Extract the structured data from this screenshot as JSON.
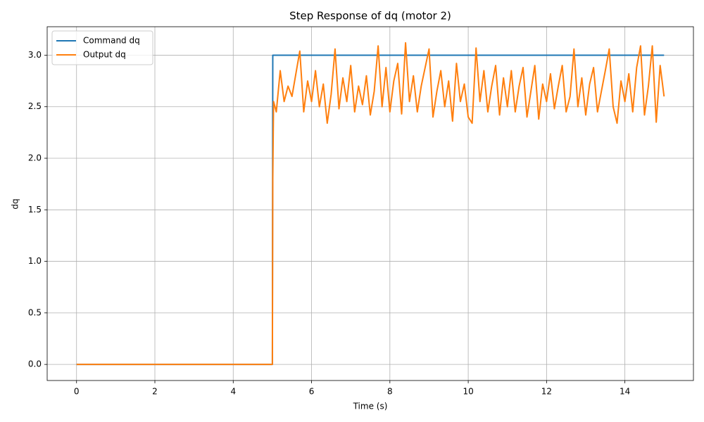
{
  "chart_data": {
    "type": "line",
    "title": "Step Response of dq (motor 2)",
    "x_label": "Time (s)",
    "y_label": "dq",
    "xlim": [
      -0.75,
      15.75
    ],
    "ylim": [
      -0.156,
      3.276
    ],
    "xticks": [
      0,
      2,
      4,
      6,
      8,
      10,
      12,
      14
    ],
    "yticks": [
      {
        "value": 0,
        "label": "0.0"
      },
      {
        "value": 0.5,
        "label": "0.5"
      },
      {
        "value": 1,
        "label": "1.0"
      },
      {
        "value": 1.5,
        "label": "1.5"
      },
      {
        "value": 2,
        "label": "2.0"
      },
      {
        "value": 2.5,
        "label": "2.5"
      },
      {
        "value": 3,
        "label": "3.0"
      }
    ],
    "grid": true,
    "legend": "upper-left",
    "series": [
      {
        "name": "Command dq",
        "color": "#1f77b4",
        "x": [
          0,
          5,
          5.01,
          15
        ],
        "values": [
          0,
          0,
          3,
          3
        ]
      },
      {
        "name": "Output dq",
        "color": "#ff7f0e",
        "x": [
          0,
          5,
          5.01,
          5.03,
          5.1,
          5.2,
          5.3,
          5.4,
          5.5,
          5.6,
          5.7,
          5.8,
          5.9,
          6.0,
          6.1,
          6.2,
          6.3,
          6.4,
          6.5,
          6.6,
          6.7,
          6.8,
          6.9,
          7.0,
          7.1,
          7.2,
          7.3,
          7.4,
          7.5,
          7.6,
          7.7,
          7.8,
          7.9,
          8.0,
          8.1,
          8.2,
          8.3,
          8.4,
          8.5,
          8.6,
          8.7,
          8.8,
          8.9,
          9.0,
          9.1,
          9.2,
          9.3,
          9.4,
          9.5,
          9.6,
          9.7,
          9.8,
          9.9,
          10.0,
          10.1,
          10.2,
          10.3,
          10.4,
          10.5,
          10.6,
          10.7,
          10.8,
          10.9,
          11.0,
          11.1,
          11.2,
          11.3,
          11.4,
          11.5,
          11.6,
          11.7,
          11.8,
          11.9,
          12.0,
          12.1,
          12.2,
          12.3,
          12.4,
          12.5,
          12.6,
          12.7,
          12.8,
          12.9,
          13.0,
          13.1,
          13.2,
          13.3,
          13.4,
          13.5,
          13.6,
          13.7,
          13.8,
          13.9,
          14.0,
          14.1,
          14.2,
          14.3,
          14.4,
          14.5,
          14.6,
          14.7,
          14.8,
          14.9,
          15.0
        ],
        "values": [
          0,
          0,
          1.8,
          2.55,
          2.45,
          2.85,
          2.55,
          2.7,
          2.6,
          2.82,
          3.04,
          2.45,
          2.75,
          2.55,
          2.85,
          2.5,
          2.72,
          2.34,
          2.62,
          3.06,
          2.48,
          2.78,
          2.55,
          2.9,
          2.45,
          2.7,
          2.52,
          2.8,
          2.42,
          2.65,
          3.09,
          2.5,
          2.88,
          2.45,
          2.75,
          2.92,
          2.43,
          3.12,
          2.55,
          2.8,
          2.45,
          2.7,
          2.88,
          3.06,
          2.4,
          2.65,
          2.85,
          2.5,
          2.75,
          2.36,
          2.92,
          2.55,
          2.72,
          2.4,
          2.34,
          3.07,
          2.55,
          2.85,
          2.45,
          2.7,
          2.9,
          2.42,
          2.78,
          2.5,
          2.85,
          2.45,
          2.7,
          2.88,
          2.4,
          2.65,
          2.9,
          2.38,
          2.72,
          2.55,
          2.82,
          2.48,
          2.7,
          2.9,
          2.45,
          2.6,
          3.06,
          2.5,
          2.78,
          2.42,
          2.72,
          2.88,
          2.45,
          2.65,
          2.85,
          3.06,
          2.5,
          2.34,
          2.75,
          2.55,
          2.82,
          2.45,
          2.88,
          3.09,
          2.42,
          2.7,
          3.09,
          2.35,
          2.9,
          2.6
        ]
      }
    ]
  }
}
